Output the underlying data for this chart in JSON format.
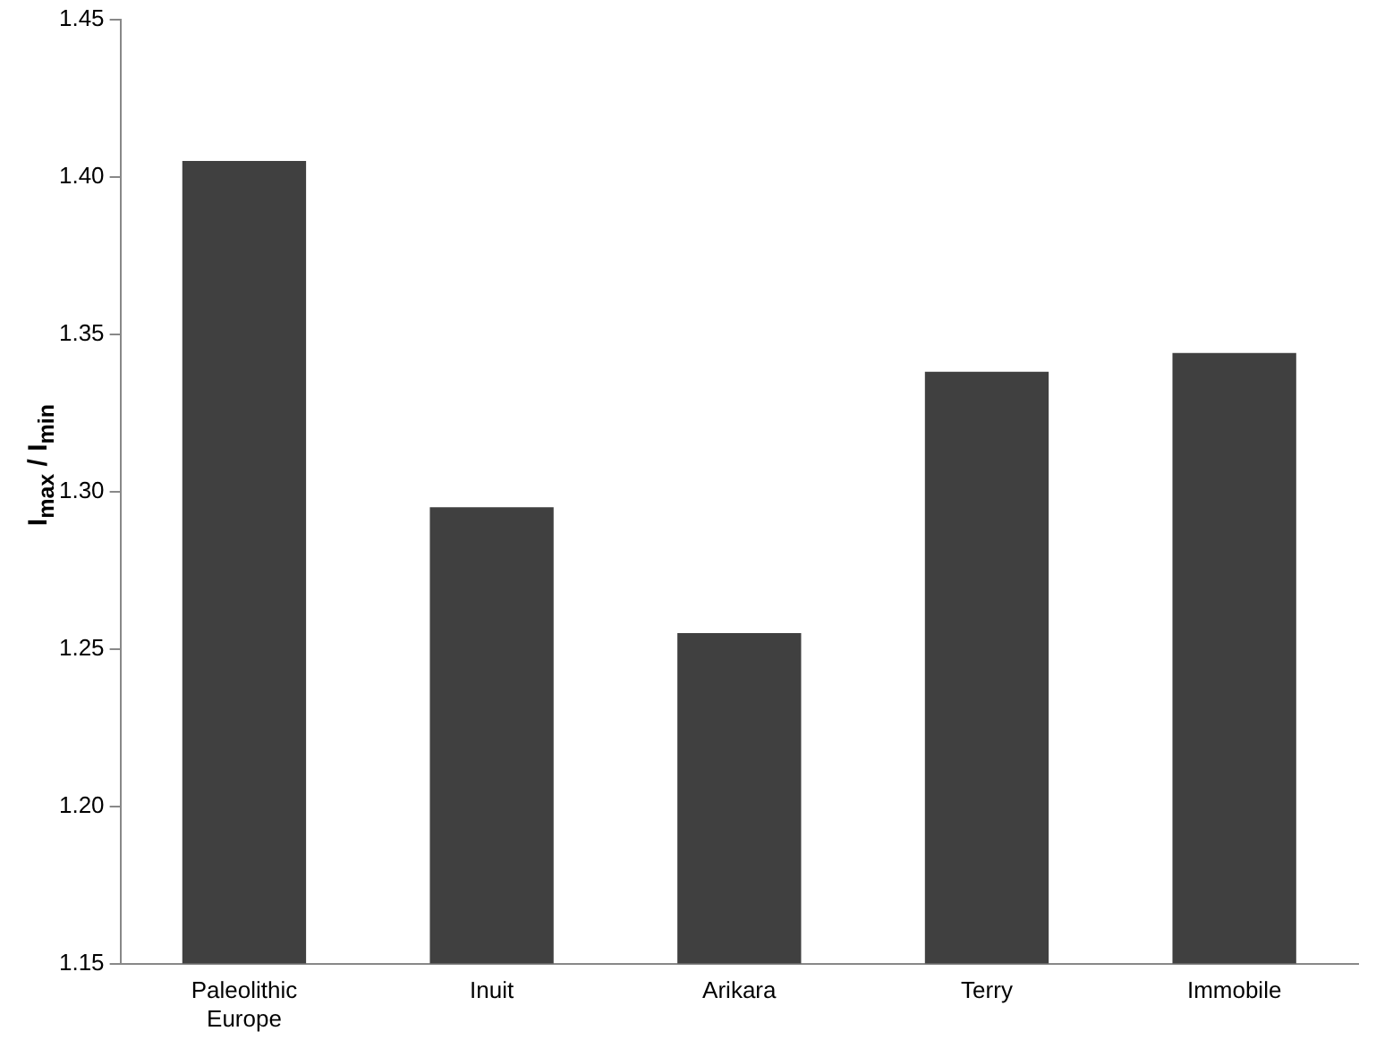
{
  "chart_data": {
    "type": "bar",
    "ylabel": "I$_{max}$ / I$_{min}$",
    "categories": [
      "Paleolithic Europe",
      "Inuit",
      "Arikara",
      "Terry",
      "Immobile"
    ],
    "values": [
      1.405,
      1.295,
      1.255,
      1.338,
      1.344
    ],
    "color": "#404040",
    "ylim": [
      1.15,
      1.45
    ],
    "yticks": [
      {
        "value": 1.15,
        "label": "1.15"
      },
      {
        "value": 1.2,
        "label": "1.20"
      },
      {
        "value": 1.25,
        "label": "1.25"
      },
      {
        "value": 1.3,
        "label": "1.30"
      },
      {
        "value": 1.35,
        "label": "1.35"
      },
      {
        "value": 1.4,
        "label": "1.40"
      },
      {
        "value": 1.45,
        "label": "1.45"
      }
    ],
    "grid": false,
    "legend": false
  }
}
